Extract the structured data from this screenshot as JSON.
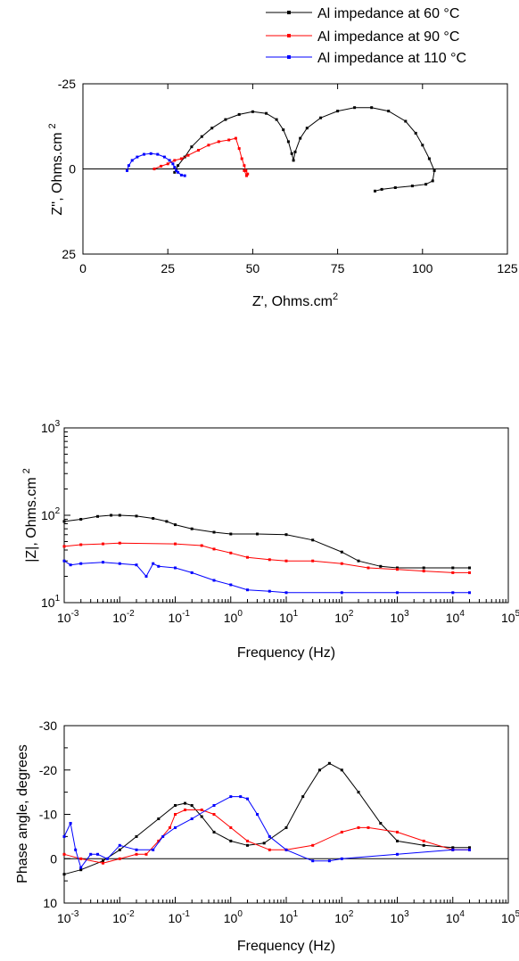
{
  "legend": {
    "entries": [
      {
        "label": "Al impedance at 60 °C",
        "color": "#000000",
        "marker": "filled-square"
      },
      {
        "label": "Al impedance at 90 °C",
        "color": "#ff0000",
        "marker": "filled-square"
      },
      {
        "label": "Al impedance at 110 °C",
        "color": "#0000ff",
        "marker": "filled-square"
      }
    ],
    "placement": "top-right"
  },
  "chart_data": [
    {
      "type": "line",
      "plot": "nyquist",
      "xlabel": "Z', Ohms.cm",
      "xlabel_sup": "2",
      "ylabel": "Z'', Ohms.cm",
      "ylabel_sup": "2",
      "xlim": [
        0,
        125
      ],
      "ylim": [
        25,
        -25
      ],
      "xticks": [
        0,
        25,
        50,
        75,
        100,
        125
      ],
      "yticks": [
        -25,
        0,
        25
      ],
      "ytick_labels": [
        "-25",
        "0",
        "25"
      ],
      "zero_line": true,
      "grid": false,
      "series": [
        {
          "name": "Al impedance at 60 °C",
          "color": "#000000",
          "x": [
            27,
            28,
            30,
            32,
            35,
            38,
            42,
            46,
            50,
            54,
            57,
            59,
            60.5,
            61.5,
            62,
            62.5,
            64,
            66,
            70,
            75,
            80,
            85,
            90,
            95,
            98,
            100,
            102,
            103.5,
            103,
            101,
            97,
            92,
            88,
            86
          ],
          "y": [
            1,
            -1,
            -3.5,
            -6.5,
            -9.5,
            -12,
            -14.5,
            -16,
            -16.8,
            -16.3,
            -14.5,
            -11.5,
            -8,
            -4.5,
            -2.5,
            -5,
            -9,
            -12,
            -15,
            -17,
            -18,
            -18,
            -17,
            -14,
            -10.5,
            -7,
            -3,
            0.5,
            3.5,
            4.5,
            5,
            5.5,
            6,
            6.5
          ]
        },
        {
          "name": "Al impedance at 90 °C",
          "color": "#ff0000",
          "x": [
            21,
            23,
            25,
            27,
            29,
            31,
            34,
            37,
            40,
            43,
            45,
            46,
            46.8,
            47.5,
            48,
            48.5,
            48.2,
            47.5
          ],
          "y": [
            0,
            -0.8,
            -1.5,
            -2.5,
            -3,
            -4,
            -5.5,
            -7,
            -8,
            -8.5,
            -9,
            -6,
            -3,
            -1,
            0.5,
            1.5,
            2,
            0.5
          ]
        },
        {
          "name": "Al impedance at 110 °C",
          "color": "#0000ff",
          "x": [
            13,
            13.5,
            14.5,
            16,
            18,
            20,
            22,
            24,
            25.5,
            26.5,
            27,
            27.5,
            28,
            29,
            30
          ],
          "y": [
            0.5,
            -1,
            -2.5,
            -3.5,
            -4.3,
            -4.5,
            -4.3,
            -3.5,
            -2.5,
            -1.5,
            -0.5,
            0.5,
            1,
            1.8,
            2
          ]
        }
      ]
    },
    {
      "type": "line",
      "plot": "bode-magnitude",
      "xscale": "log",
      "yscale": "log",
      "xlabel": "Frequency (Hz)",
      "ylabel": "|Z|, Ohms.cm",
      "ylabel_sup": "2",
      "xlim": [
        0.001,
        100000
      ],
      "ylim": [
        10,
        1000
      ],
      "xtick_exponents": [
        -3,
        -2,
        -1,
        0,
        1,
        2,
        3,
        4,
        5
      ],
      "ytick_exponents": [
        1,
        2,
        3
      ],
      "tick_base": "10",
      "grid": false,
      "series": [
        {
          "name": "Al impedance at 60 °C",
          "color": "#000000",
          "x": [
            0.001,
            0.002,
            0.004,
            0.007,
            0.01,
            0.02,
            0.04,
            0.07,
            0.1,
            0.2,
            0.5,
            1,
            3,
            10,
            30,
            100,
            200,
            500,
            1000,
            3000,
            10000,
            20000
          ],
          "y": [
            85,
            90,
            97,
            100,
            100,
            98,
            92,
            85,
            78,
            70,
            64,
            61,
            61,
            60,
            52,
            38,
            30,
            26,
            25,
            25,
            25,
            25
          ]
        },
        {
          "name": "Al impedance at 90 °C",
          "color": "#ff0000",
          "x": [
            0.001,
            0.002,
            0.005,
            0.01,
            0.1,
            0.3,
            0.5,
            1,
            2,
            5,
            10,
            30,
            100,
            300,
            1000,
            3000,
            10000,
            20000
          ],
          "y": [
            44,
            46,
            47,
            48,
            47,
            45,
            41,
            37,
            33,
            31,
            30,
            30,
            28,
            25,
            24,
            23,
            22,
            22
          ]
        },
        {
          "name": "Al impedance at 110 °C",
          "color": "#0000ff",
          "x": [
            0.001,
            0.0013,
            0.002,
            0.005,
            0.01,
            0.02,
            0.03,
            0.04,
            0.05,
            0.1,
            0.2,
            0.5,
            1,
            2,
            5,
            10,
            100,
            1000,
            10000,
            20000
          ],
          "y": [
            30,
            27,
            28,
            29,
            28,
            27,
            20,
            28,
            26,
            25,
            22,
            18,
            16,
            14,
            13.5,
            13,
            13,
            13,
            13,
            13
          ]
        }
      ]
    },
    {
      "type": "line",
      "plot": "bode-phase",
      "xscale": "log",
      "xlabel": "Frequency (Hz)",
      "ylabel": "Phase angle, degrees",
      "xlim": [
        0.001,
        100000
      ],
      "ylim": [
        10,
        -30
      ],
      "xtick_exponents": [
        -3,
        -2,
        -1,
        0,
        1,
        2,
        3,
        4,
        5
      ],
      "tick_base": "10",
      "yticks": [
        -30,
        -20,
        -10,
        0,
        10
      ],
      "ytick_labels": [
        "-30",
        "-20",
        "-10",
        "0",
        "10"
      ],
      "zero_line": true,
      "grid": false,
      "series": [
        {
          "name": "Al impedance at 60 °C",
          "color": "#000000",
          "x": [
            0.001,
            0.002,
            0.005,
            0.01,
            0.02,
            0.05,
            0.1,
            0.15,
            0.2,
            0.3,
            0.5,
            1,
            2,
            4,
            10,
            20,
            40,
            60,
            100,
            200,
            500,
            1000,
            3000,
            10000,
            20000
          ],
          "y": [
            3.5,
            2.5,
            0.5,
            -2,
            -5,
            -9,
            -12,
            -12.5,
            -12,
            -9.5,
            -6,
            -4,
            -3,
            -3.5,
            -7,
            -14,
            -20,
            -21.5,
            -20,
            -15,
            -8,
            -4,
            -3,
            -2.5,
            -2.5
          ]
        },
        {
          "name": "Al impedance at 90 °C",
          "color": "#ff0000",
          "x": [
            0.001,
            0.002,
            0.005,
            0.01,
            0.02,
            0.03,
            0.05,
            0.08,
            0.1,
            0.15,
            0.3,
            0.5,
            1,
            2,
            5,
            10,
            30,
            100,
            200,
            300,
            1000,
            3000,
            10000,
            20000
          ],
          "y": [
            -1,
            0,
            1,
            0,
            -1,
            -1,
            -4,
            -7,
            -10,
            -11,
            -11,
            -10,
            -7,
            -4,
            -2,
            -2,
            -3,
            -6,
            -7,
            -7,
            -6,
            -4,
            -2,
            -2
          ]
        },
        {
          "name": "Al impedance at 110 °C",
          "color": "#0000ff",
          "x": [
            0.001,
            0.0013,
            0.0016,
            0.002,
            0.003,
            0.004,
            0.006,
            0.01,
            0.02,
            0.04,
            0.06,
            0.1,
            0.2,
            0.5,
            1,
            1.5,
            2,
            3,
            5,
            10,
            30,
            60,
            100,
            1000,
            10000,
            20000
          ],
          "y": [
            -5,
            -8,
            -2,
            2,
            -1,
            -1,
            0,
            -3,
            -2,
            -2,
            -5,
            -7,
            -9,
            -12,
            -14,
            -14,
            -13.5,
            -10,
            -5,
            -2,
            0.5,
            0.5,
            0,
            -1,
            -2,
            -2
          ]
        }
      ]
    }
  ]
}
